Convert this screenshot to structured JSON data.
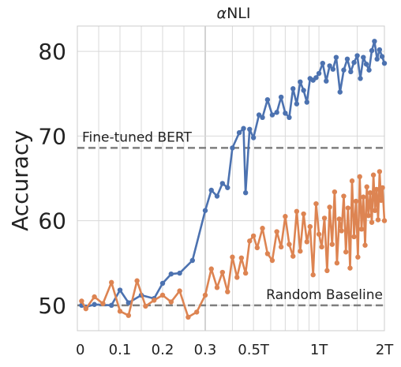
{
  "chart_data": {
    "type": "line",
    "title": "αNLI",
    "title_greek": "α",
    "title_rest": "NLI",
    "xlabel": "",
    "ylabel": "Accuracy",
    "ylim": [
      47,
      83
    ],
    "yticks": [
      50,
      60,
      70,
      80
    ],
    "ytick_labels": [
      "50",
      "60",
      "70",
      "80"
    ],
    "x_axis_note": "piecewise scale: linear from 0 to 0.3, then logarithmic from 0.3 to 2T",
    "xticks": [
      0,
      0.1,
      0.2,
      0.3,
      0.5,
      1,
      2
    ],
    "xtick_labels": [
      "0",
      "0.1",
      "0.2",
      "0.3",
      "0.5T",
      "1T",
      "2T"
    ],
    "grid": true,
    "reference_lines": [
      {
        "label": "Fine-tuned BERT",
        "y": 68.6,
        "style": "dashed",
        "color": "#7f7f7f",
        "label_position": "top-left"
      },
      {
        "label": "Random Baseline",
        "y": 50.0,
        "style": "dashed",
        "color": "#7f7f7f",
        "label_position": "top-right"
      }
    ],
    "series": [
      {
        "color": "#4c72b0",
        "x": [
          0.01,
          0.02,
          0.04,
          0.08,
          0.1,
          0.12,
          0.15,
          0.18,
          0.2,
          0.22,
          0.24,
          0.27,
          0.3,
          0.32,
          0.34,
          0.36,
          0.38,
          0.4,
          0.43,
          0.45,
          0.46,
          0.48,
          0.5,
          0.53,
          0.55,
          0.58,
          0.61,
          0.64,
          0.67,
          0.7,
          0.73,
          0.76,
          0.79,
          0.82,
          0.85,
          0.88,
          0.91,
          0.94,
          0.97,
          1.0,
          1.04,
          1.08,
          1.12,
          1.16,
          1.2,
          1.25,
          1.3,
          1.35,
          1.4,
          1.45,
          1.5,
          1.55,
          1.6,
          1.65,
          1.7,
          1.75,
          1.8,
          1.85,
          1.9,
          1.95,
          2.0
        ],
        "y": [
          50.0,
          49.8,
          50.1,
          50.0,
          51.8,
          50.3,
          51.2,
          50.8,
          52.6,
          53.7,
          53.8,
          55.3,
          61.2,
          63.6,
          62.9,
          64.4,
          63.9,
          68.6,
          70.4,
          70.9,
          63.3,
          70.8,
          69.8,
          72.5,
          72.2,
          74.3,
          72.5,
          72.8,
          74.6,
          72.7,
          72.2,
          75.6,
          73.8,
          76.4,
          75.4,
          74.0,
          76.8,
          76.6,
          76.9,
          77.4,
          78.6,
          76.5,
          78.3,
          77.9,
          79.3,
          75.2,
          77.8,
          79.1,
          77.6,
          78.7,
          79.5,
          76.8,
          79.3,
          78.5,
          77.8,
          80.1,
          81.2,
          79.1,
          80.2,
          79.4,
          78.6
        ]
      },
      {
        "color": "#dd8452",
        "x": [
          0.01,
          0.02,
          0.04,
          0.06,
          0.08,
          0.1,
          0.12,
          0.14,
          0.16,
          0.18,
          0.2,
          0.22,
          0.24,
          0.26,
          0.28,
          0.3,
          0.32,
          0.34,
          0.36,
          0.38,
          0.4,
          0.42,
          0.44,
          0.46,
          0.48,
          0.5,
          0.52,
          0.55,
          0.58,
          0.61,
          0.64,
          0.67,
          0.7,
          0.73,
          0.76,
          0.79,
          0.82,
          0.85,
          0.88,
          0.91,
          0.94,
          0.97,
          1.0,
          1.03,
          1.06,
          1.09,
          1.12,
          1.15,
          1.18,
          1.21,
          1.24,
          1.27,
          1.3,
          1.33,
          1.36,
          1.39,
          1.42,
          1.45,
          1.48,
          1.51,
          1.54,
          1.57,
          1.6,
          1.63,
          1.66,
          1.69,
          1.72,
          1.75,
          1.78,
          1.81,
          1.84,
          1.87,
          1.9,
          1.93,
          1.96,
          2.0
        ],
        "y": [
          50.5,
          49.6,
          51.0,
          50.2,
          52.7,
          49.3,
          48.8,
          52.9,
          49.9,
          50.6,
          51.2,
          50.4,
          51.7,
          48.6,
          49.2,
          51.2,
          54.3,
          52.1,
          53.9,
          51.6,
          55.7,
          53.3,
          55.6,
          53.8,
          57.6,
          58.2,
          56.8,
          59.1,
          56.1,
          55.3,
          58.7,
          56.9,
          60.5,
          57.2,
          55.8,
          61.1,
          56.4,
          60.8,
          57.5,
          59.3,
          53.6,
          62.0,
          58.4,
          56.9,
          60.3,
          54.1,
          61.6,
          57.2,
          63.4,
          55.0,
          60.2,
          58.8,
          62.9,
          56.3,
          61.5,
          54.4,
          64.7,
          58.1,
          62.3,
          55.7,
          65.2,
          59.0,
          62.8,
          57.1,
          64.0,
          60.6,
          63.3,
          59.8,
          65.4,
          61.2,
          63.7,
          60.1,
          65.8,
          62.4,
          63.9,
          60.0
        ]
      }
    ]
  }
}
